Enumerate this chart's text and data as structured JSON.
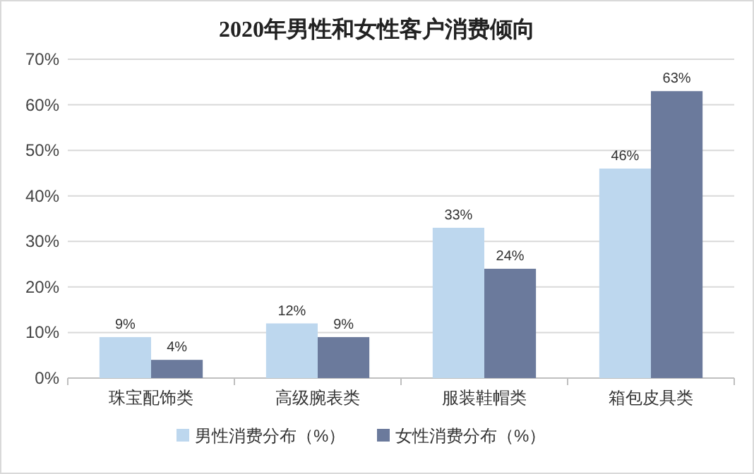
{
  "chart_data": {
    "type": "bar",
    "title": "2020年男性和女性客户消费倾向",
    "categories": [
      "珠宝配饰类",
      "高级腕表类",
      "服装鞋帽类",
      "箱包皮具类"
    ],
    "series": [
      {
        "name": "男性消费分布（%）",
        "color": "#bdd7ee",
        "values": [
          9,
          12,
          33,
          46
        ],
        "value_labels": [
          "9%",
          "12%",
          "33%",
          "46%"
        ]
      },
      {
        "name": "女性消费分布（%）",
        "color": "#6b7a9c",
        "values": [
          4,
          9,
          24,
          63
        ],
        "value_labels": [
          "4%",
          "9%",
          "24%",
          "63%"
        ]
      }
    ],
    "ylim": [
      0,
      70
    ],
    "yticks": [
      {
        "value": 0,
        "label": "0%"
      },
      {
        "value": 10,
        "label": "10%"
      },
      {
        "value": 20,
        "label": "20%"
      },
      {
        "value": 30,
        "label": "30%"
      },
      {
        "value": 40,
        "label": "40%"
      },
      {
        "value": 50,
        "label": "50%"
      },
      {
        "value": 60,
        "label": "60%"
      },
      {
        "value": 70,
        "label": "70%"
      }
    ],
    "grid": "y",
    "legend": "bottom"
  }
}
